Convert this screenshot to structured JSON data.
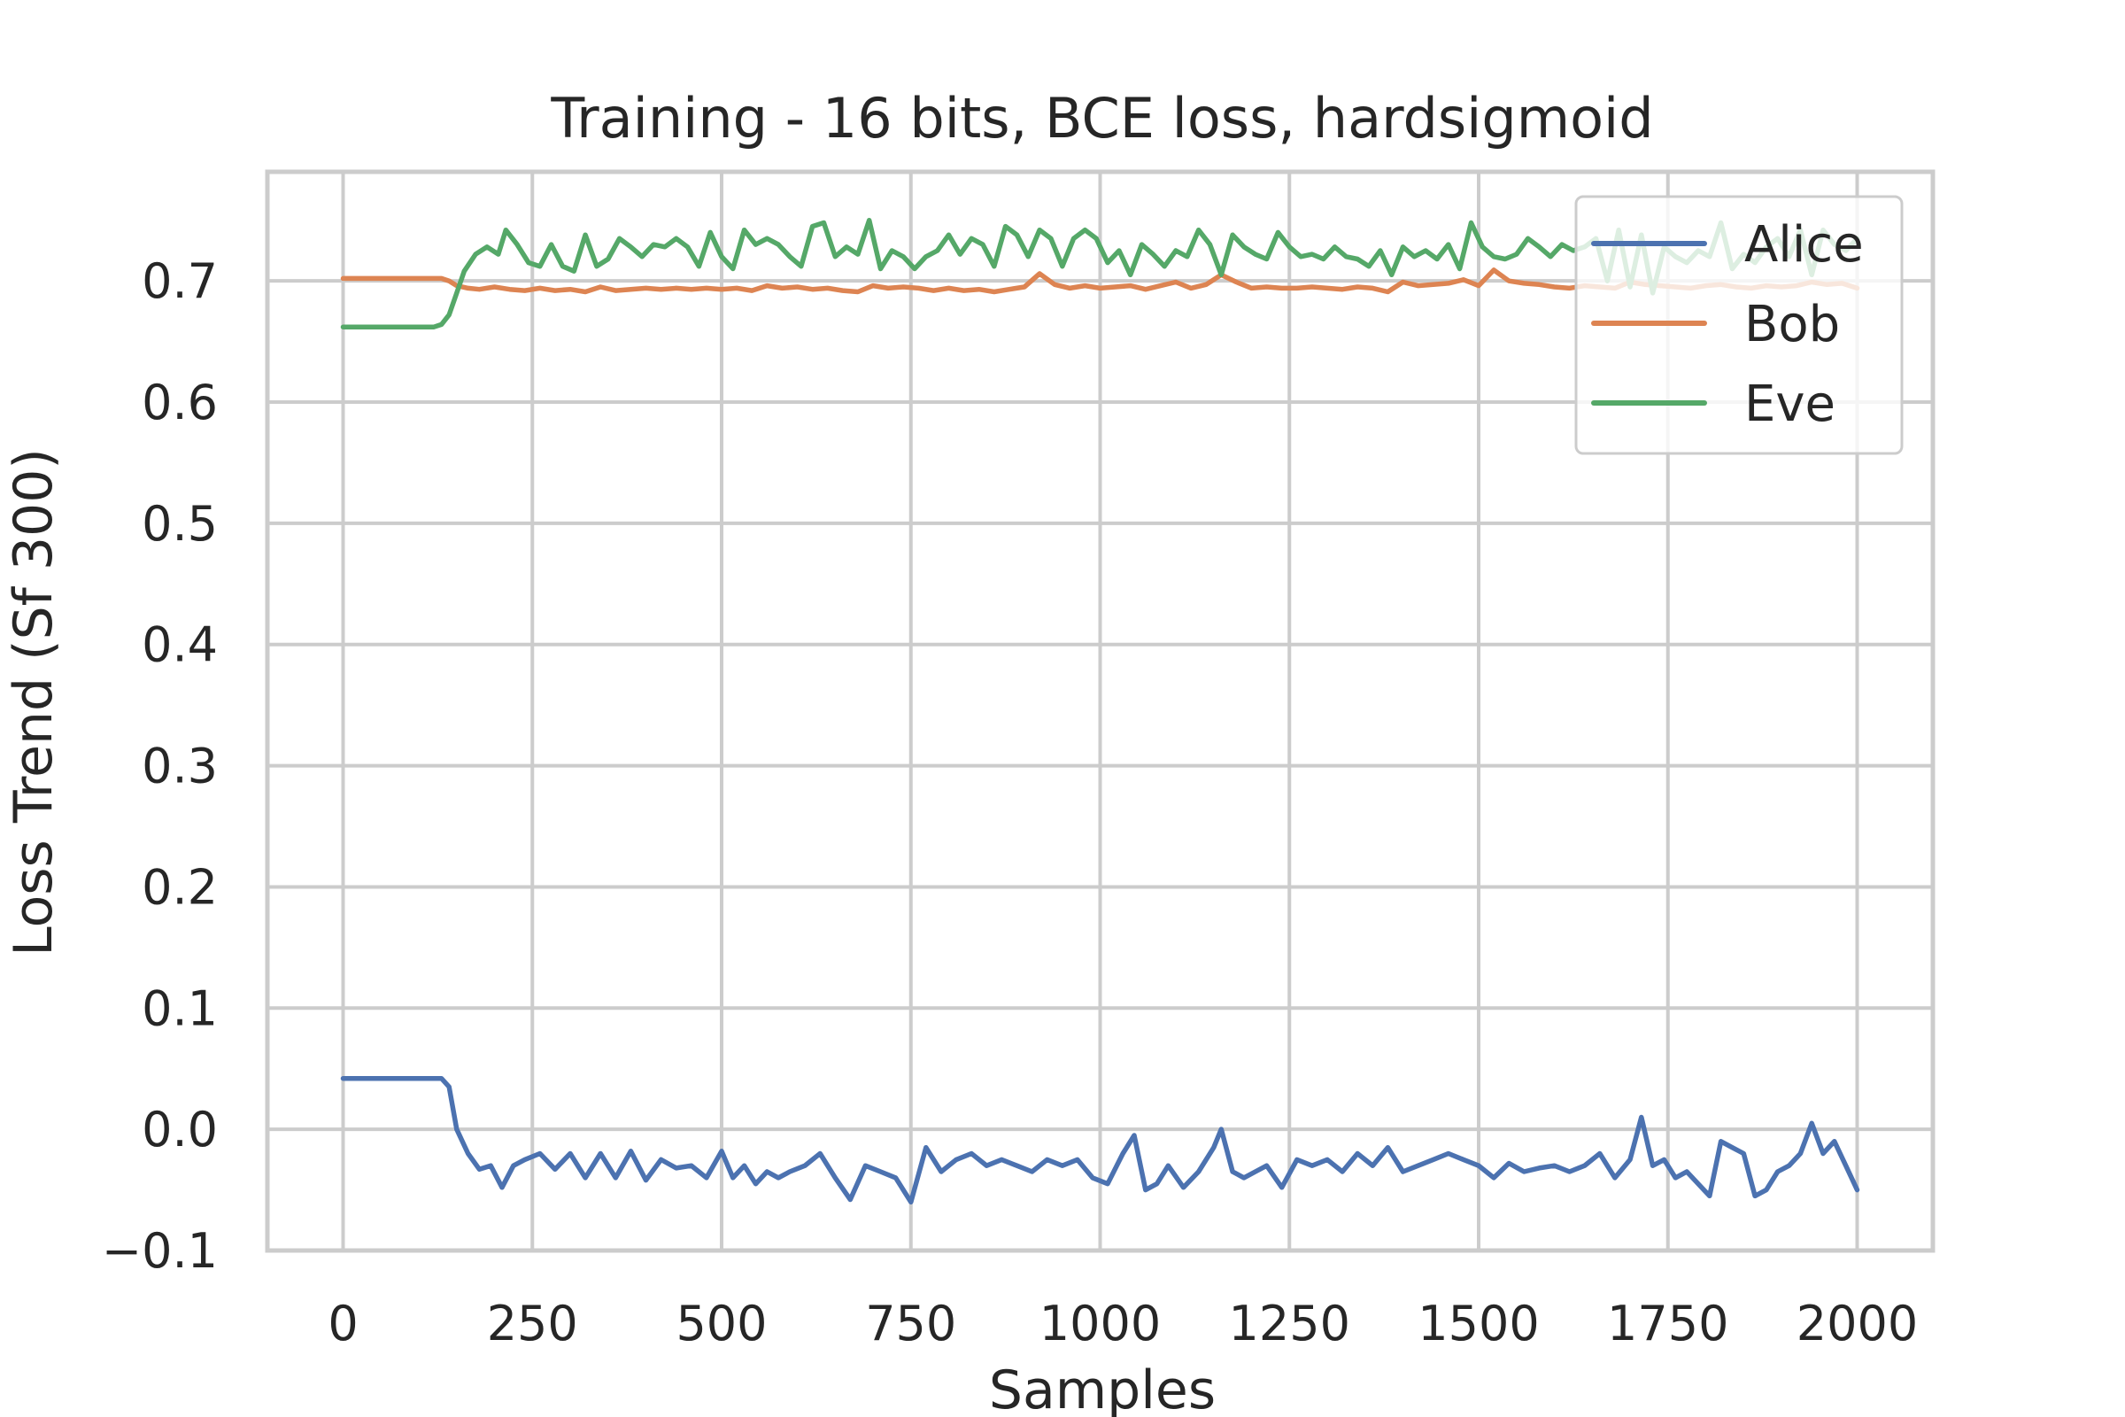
{
  "chart_data": {
    "type": "line",
    "title": "Training - 16 bits, BCE loss, hardsigmoid",
    "xlabel": "Samples",
    "ylabel": "Loss Trend (Sf 300)",
    "xlim": [
      -100,
      2100
    ],
    "ylim": [
      -0.1,
      0.79
    ],
    "xticks": [
      0,
      250,
      500,
      750,
      1000,
      1250,
      1500,
      1750,
      2000
    ],
    "xtick_labels": [
      "0",
      "250",
      "500",
      "750",
      "1000",
      "1250",
      "1500",
      "1750",
      "2000"
    ],
    "yticks": [
      -0.1,
      0.0,
      0.1,
      0.2,
      0.3,
      0.4,
      0.5,
      0.6,
      0.7
    ],
    "ytick_labels": [
      "−0.1",
      "0.0",
      "0.1",
      "0.2",
      "0.3",
      "0.4",
      "0.5",
      "0.6",
      "0.7"
    ],
    "grid": true,
    "legend": "top-right",
    "series": [
      {
        "name": "Alice",
        "color": "#4c72b0",
        "x": [
          0,
          60,
          120,
          130,
          140,
          150,
          165,
          180,
          195,
          210,
          225,
          240,
          260,
          280,
          300,
          320,
          340,
          360,
          380,
          400,
          420,
          440,
          460,
          480,
          500,
          515,
          530,
          545,
          560,
          575,
          590,
          610,
          630,
          650,
          670,
          690,
          710,
          730,
          750,
          770,
          790,
          810,
          830,
          850,
          870,
          890,
          910,
          930,
          950,
          970,
          990,
          1010,
          1030,
          1045,
          1060,
          1075,
          1090,
          1110,
          1130,
          1150,
          1160,
          1175,
          1190,
          1205,
          1220,
          1240,
          1260,
          1280,
          1300,
          1320,
          1340,
          1360,
          1380,
          1400,
          1420,
          1440,
          1460,
          1480,
          1500,
          1520,
          1540,
          1560,
          1580,
          1600,
          1620,
          1640,
          1660,
          1680,
          1700,
          1715,
          1730,
          1745,
          1760,
          1775,
          1790,
          1805,
          1820,
          1835,
          1850,
          1865,
          1880,
          1895,
          1910,
          1925,
          1940,
          1955,
          1970,
          1985,
          2000
        ],
        "y": [
          0.042,
          0.042,
          0.042,
          0.042,
          0.035,
          0.0,
          -0.02,
          -0.033,
          -0.03,
          -0.048,
          -0.03,
          -0.025,
          -0.02,
          -0.033,
          -0.02,
          -0.04,
          -0.02,
          -0.04,
          -0.018,
          -0.042,
          -0.025,
          -0.032,
          -0.03,
          -0.04,
          -0.018,
          -0.04,
          -0.03,
          -0.045,
          -0.035,
          -0.04,
          -0.035,
          -0.03,
          -0.02,
          -0.04,
          -0.058,
          -0.03,
          -0.035,
          -0.04,
          -0.06,
          -0.015,
          -0.035,
          -0.025,
          -0.02,
          -0.03,
          -0.025,
          -0.03,
          -0.035,
          -0.025,
          -0.03,
          -0.025,
          -0.04,
          -0.045,
          -0.02,
          -0.005,
          -0.05,
          -0.045,
          -0.03,
          -0.048,
          -0.035,
          -0.015,
          0.0,
          -0.035,
          -0.04,
          -0.035,
          -0.03,
          -0.048,
          -0.025,
          -0.03,
          -0.025,
          -0.035,
          -0.02,
          -0.03,
          -0.015,
          -0.035,
          -0.03,
          -0.025,
          -0.02,
          -0.025,
          -0.03,
          -0.04,
          -0.028,
          -0.035,
          -0.032,
          -0.03,
          -0.035,
          -0.03,
          -0.02,
          -0.04,
          -0.025,
          0.01,
          -0.03,
          -0.025,
          -0.04,
          -0.035,
          -0.045,
          -0.055,
          -0.01,
          -0.015,
          -0.02,
          -0.055,
          -0.05,
          -0.035,
          -0.03,
          -0.02,
          0.005,
          -0.02,
          -0.01,
          -0.03,
          -0.05
        ]
      },
      {
        "name": "Bob",
        "color": "#dd8452",
        "x": [
          0,
          60,
          120,
          130,
          140,
          150,
          165,
          180,
          200,
          220,
          240,
          260,
          280,
          300,
          320,
          340,
          360,
          380,
          400,
          420,
          440,
          460,
          480,
          500,
          520,
          540,
          560,
          580,
          600,
          620,
          640,
          660,
          680,
          700,
          720,
          740,
          760,
          780,
          800,
          820,
          840,
          860,
          880,
          900,
          920,
          940,
          960,
          980,
          1000,
          1020,
          1040,
          1060,
          1080,
          1100,
          1120,
          1140,
          1160,
          1180,
          1200,
          1220,
          1240,
          1260,
          1280,
          1300,
          1320,
          1340,
          1360,
          1380,
          1400,
          1420,
          1440,
          1460,
          1480,
          1500,
          1520,
          1540,
          1560,
          1580,
          1600,
          1620,
          1640,
          1660,
          1680,
          1700,
          1720,
          1740,
          1760,
          1780,
          1800,
          1820,
          1840,
          1860,
          1880,
          1900,
          1920,
          1940,
          1960,
          1980,
          2000
        ],
        "y": [
          0.702,
          0.702,
          0.702,
          0.702,
          0.7,
          0.696,
          0.694,
          0.693,
          0.695,
          0.693,
          0.692,
          0.694,
          0.692,
          0.693,
          0.691,
          0.695,
          0.692,
          0.693,
          0.694,
          0.693,
          0.694,
          0.693,
          0.694,
          0.693,
          0.694,
          0.692,
          0.696,
          0.694,
          0.695,
          0.693,
          0.694,
          0.692,
          0.691,
          0.696,
          0.694,
          0.695,
          0.694,
          0.692,
          0.694,
          0.692,
          0.693,
          0.691,
          0.693,
          0.695,
          0.706,
          0.697,
          0.694,
          0.696,
          0.694,
          0.695,
          0.696,
          0.693,
          0.696,
          0.699,
          0.694,
          0.697,
          0.705,
          0.699,
          0.694,
          0.695,
          0.694,
          0.694,
          0.695,
          0.694,
          0.693,
          0.695,
          0.694,
          0.691,
          0.699,
          0.696,
          0.697,
          0.698,
          0.701,
          0.696,
          0.709,
          0.7,
          0.698,
          0.697,
          0.695,
          0.694,
          0.696,
          0.695,
          0.694,
          0.699,
          0.697,
          0.696,
          0.695,
          0.694,
          0.696,
          0.697,
          0.695,
          0.694,
          0.696,
          0.695,
          0.696,
          0.699,
          0.697,
          0.698,
          0.694
        ]
      },
      {
        "name": "Eve",
        "color": "#55a868",
        "x": [
          0,
          60,
          120,
          130,
          140,
          150,
          160,
          175,
          190,
          205,
          215,
          230,
          245,
          260,
          275,
          290,
          305,
          320,
          335,
          350,
          365,
          380,
          395,
          410,
          425,
          440,
          455,
          470,
          485,
          500,
          515,
          530,
          545,
          560,
          575,
          590,
          605,
          620,
          635,
          650,
          665,
          680,
          695,
          710,
          725,
          740,
          755,
          770,
          785,
          800,
          815,
          830,
          845,
          860,
          875,
          890,
          905,
          920,
          935,
          950,
          965,
          980,
          995,
          1010,
          1025,
          1040,
          1055,
          1070,
          1085,
          1100,
          1115,
          1130,
          1145,
          1160,
          1175,
          1190,
          1205,
          1220,
          1235,
          1250,
          1265,
          1280,
          1295,
          1310,
          1325,
          1340,
          1355,
          1370,
          1385,
          1400,
          1415,
          1430,
          1445,
          1460,
          1475,
          1490,
          1505,
          1520,
          1535,
          1550,
          1565,
          1580,
          1595,
          1610,
          1625,
          1640,
          1655,
          1670,
          1685,
          1700,
          1715,
          1730,
          1745,
          1760,
          1775,
          1790,
          1805,
          1820,
          1835,
          1850,
          1865,
          1880,
          1895,
          1910,
          1925,
          1940,
          1955,
          1970,
          1985,
          2000
        ],
        "y": [
          0.662,
          0.662,
          0.662,
          0.664,
          0.672,
          0.69,
          0.708,
          0.722,
          0.728,
          0.722,
          0.742,
          0.73,
          0.715,
          0.712,
          0.73,
          0.712,
          0.708,
          0.738,
          0.712,
          0.718,
          0.735,
          0.728,
          0.72,
          0.73,
          0.728,
          0.735,
          0.728,
          0.712,
          0.74,
          0.72,
          0.71,
          0.742,
          0.73,
          0.735,
          0.73,
          0.72,
          0.712,
          0.745,
          0.748,
          0.72,
          0.728,
          0.722,
          0.75,
          0.71,
          0.725,
          0.72,
          0.71,
          0.72,
          0.725,
          0.738,
          0.722,
          0.735,
          0.73,
          0.712,
          0.745,
          0.738,
          0.72,
          0.742,
          0.735,
          0.712,
          0.735,
          0.742,
          0.735,
          0.715,
          0.725,
          0.705,
          0.73,
          0.722,
          0.712,
          0.725,
          0.72,
          0.742,
          0.73,
          0.705,
          0.738,
          0.728,
          0.722,
          0.718,
          0.74,
          0.728,
          0.72,
          0.722,
          0.718,
          0.728,
          0.72,
          0.718,
          0.712,
          0.725,
          0.705,
          0.728,
          0.72,
          0.725,
          0.718,
          0.73,
          0.71,
          0.748,
          0.728,
          0.72,
          0.718,
          0.722,
          0.735,
          0.728,
          0.72,
          0.73,
          0.725,
          0.728,
          0.735,
          0.7,
          0.742,
          0.695,
          0.738,
          0.69,
          0.728,
          0.72,
          0.715,
          0.725,
          0.72,
          0.748,
          0.71,
          0.722,
          0.715,
          0.728,
          0.735,
          0.72,
          0.742,
          0.705,
          0.742,
          0.73,
          0.725,
          0.735
        ]
      }
    ]
  }
}
